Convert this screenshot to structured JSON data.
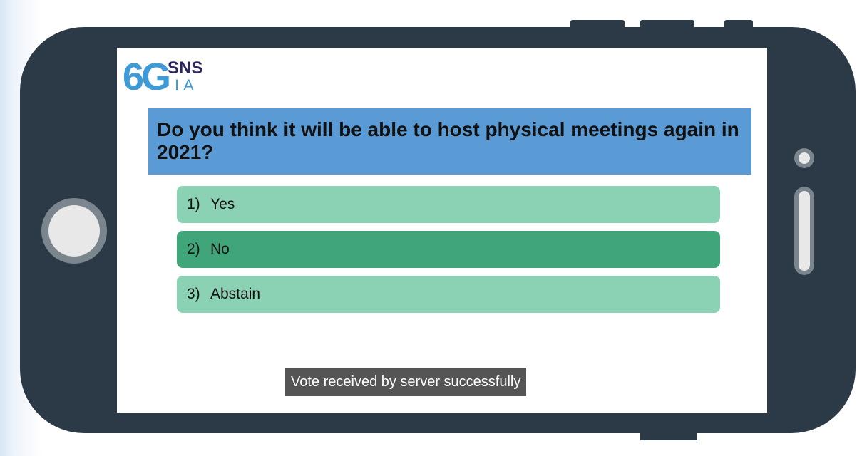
{
  "logo": {
    "mark": "6G",
    "top": "SNS",
    "bottom": "IA"
  },
  "question": "Do you think it will be able to host physical meetings again in 2021?",
  "options": [
    {
      "number": "1)",
      "label": "Yes"
    },
    {
      "number": "2)",
      "label": "No"
    },
    {
      "number": "3)",
      "label": "Abstain"
    }
  ],
  "toast": "Vote received by server successfully"
}
